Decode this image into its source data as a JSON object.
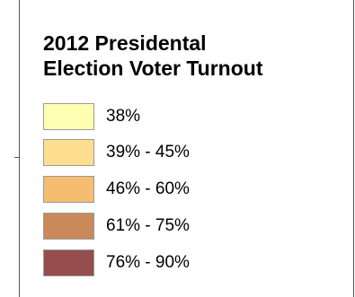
{
  "legend": {
    "title_line1": "2012 Presidental",
    "title_line2": "Election Voter Turnout",
    "items": [
      {
        "label": "38%",
        "color": "#ffffb2"
      },
      {
        "label": "39% - 45%",
        "color": "#fedf8f"
      },
      {
        "label": "46% - 60%",
        "color": "#f4bd70"
      },
      {
        "label": "61% - 75%",
        "color": "#c98959"
      },
      {
        "label": "76% - 90%",
        "color": "#954d4d"
      }
    ]
  }
}
